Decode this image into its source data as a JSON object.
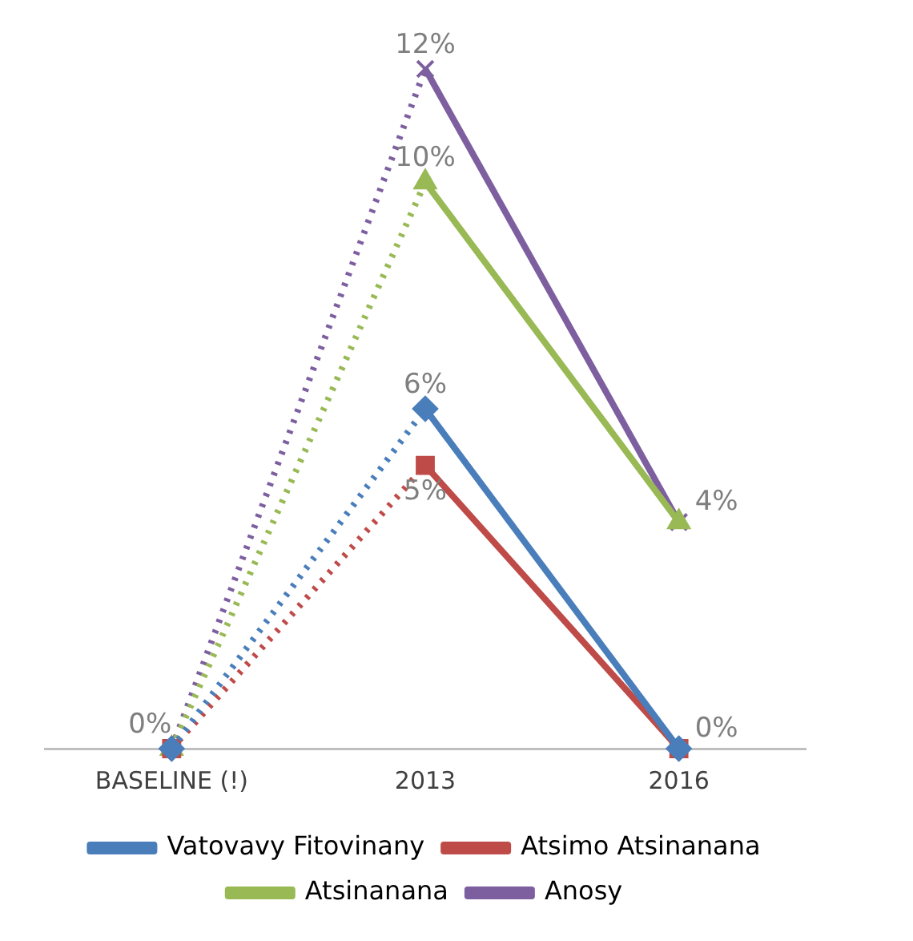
{
  "chart_data": {
    "type": "line",
    "categories": [
      "BASELINE (!)",
      "2013",
      "2016"
    ],
    "series": [
      {
        "name": "Vatovavy Fitovinany",
        "color": "#4a7ebb",
        "marker": "diamond",
        "values": [
          0,
          6,
          0
        ],
        "value_labels": [
          null,
          "6%",
          null
        ]
      },
      {
        "name": "Atsimo Atsinanana",
        "color": "#be4b48",
        "marker": "square",
        "values": [
          0,
          5,
          0
        ],
        "value_labels": [
          null,
          "5%",
          "0%"
        ]
      },
      {
        "name": "Atsinanana",
        "color": "#98b954",
        "marker": "triangle",
        "values": [
          0,
          10,
          4
        ],
        "value_labels": [
          "0%",
          "10%",
          null
        ]
      },
      {
        "name": "Anosy",
        "color": "#7d5fa0",
        "marker": "cross",
        "values": [
          0,
          12,
          4
        ],
        "value_labels": [
          null,
          "12%",
          "4%"
        ]
      }
    ],
    "legend": "bottom",
    "grid": false
  }
}
